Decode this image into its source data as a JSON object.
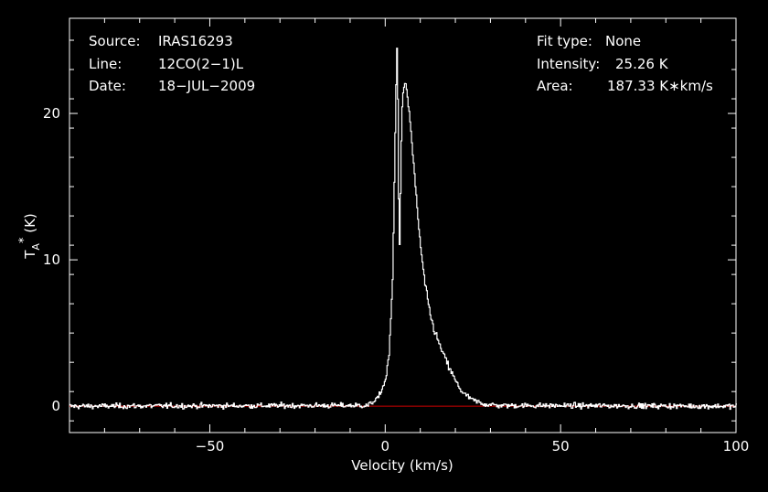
{
  "chart_data": {
    "type": "line",
    "xlabel": "Velocity (km/s)",
    "ylabel": "T_A^* (K)",
    "xlim": [
      -90,
      100
    ],
    "ylim": [
      -1.8,
      26.5
    ],
    "x_ticks": [
      -50,
      0,
      50,
      100
    ],
    "x_tick_labels": [
      "−50",
      "0",
      "50",
      "100"
    ],
    "y_ticks": [
      0,
      10,
      20
    ],
    "y_tick_labels": [
      "0",
      "10",
      "20"
    ],
    "grid": false,
    "colors": {
      "background": "#000000",
      "spectrum": "#ffffff",
      "baseline": "#cc0000",
      "axes": "#ffffff"
    },
    "baseline_value": 0,
    "spectrum_profile": {
      "x": [
        -90,
        -5,
        -2,
        0,
        1,
        2,
        3,
        3.3,
        3.5,
        3.9,
        4.2,
        4.6,
        5,
        5.5,
        6,
        7,
        8,
        9,
        10,
        11,
        12,
        13,
        14,
        16,
        18,
        20,
        22,
        25,
        28,
        32,
        100
      ],
      "y": [
        0,
        0.05,
        0.6,
        1.8,
        3.5,
        8.5,
        22,
        25.2,
        21,
        9.8,
        14,
        19.5,
        21.5,
        22,
        21.6,
        19.5,
        16.5,
        13.5,
        10.8,
        8.8,
        7.2,
        6,
        5.1,
        3.8,
        2.7,
        1.7,
        0.9,
        0.4,
        0.15,
        0.05,
        0
      ]
    },
    "peak_value": 25.26,
    "noise_rms": 0.15,
    "annotations": {
      "source_label": "Source:",
      "source_value": "IRAS16293",
      "line_label": "Line:",
      "line_value": "12CO(2−1)L",
      "date_label": "Date:",
      "date_value": "18−JUL−2009",
      "fit_label": "Fit type:",
      "fit_value": "None",
      "intensity_label": "Intensity:",
      "intensity_value": "25.26 K",
      "area_label": "Area:",
      "area_value": "187.33 K∗km/s"
    }
  }
}
